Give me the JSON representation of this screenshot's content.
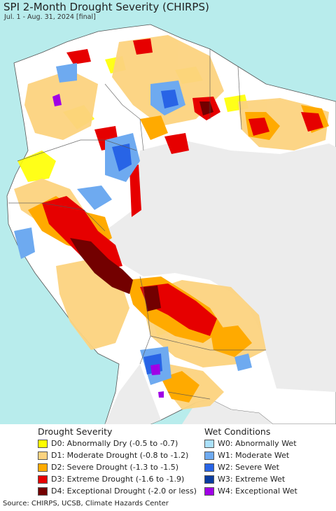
{
  "map": {
    "title": "SPI 2-Month Drought Severity (CHIRPS)",
    "subtitle": "Jul. 1 - Aug. 31, 2024 [final]",
    "colors": {
      "ocean": "#b8ecec",
      "no_drought": "#ffffff",
      "outside_region": "#ececec",
      "borders": "#555555"
    }
  },
  "legend": {
    "drought": {
      "heading": "Drought Severity",
      "items": [
        {
          "label": "D0: Abnormally Dry (-0.5 to -0.7)",
          "color": "#ffff00"
        },
        {
          "label": "D1: Moderate Drought (-0.8 to -1.2)",
          "color": "#fcd37f"
        },
        {
          "label": "D2: Severe Drought (-1.3 to -1.5)",
          "color": "#ffaa00"
        },
        {
          "label": "D3: Extreme Drought (-1.6 to -1.9)",
          "color": "#e60000"
        },
        {
          "label": "D4: Exceptional Drought (-2.0 or less)",
          "color": "#730000"
        }
      ]
    },
    "wet": {
      "heading": "Wet Conditions",
      "items": [
        {
          "label": "W0: Abnormally Wet",
          "color": "#aae0fa"
        },
        {
          "label": "W1: Moderate Wet",
          "color": "#6eaaf0"
        },
        {
          "label": "W2: Severe Wet",
          "color": "#2864e6"
        },
        {
          "label": "W3: Extreme Wet",
          "color": "#0a3ca0"
        },
        {
          "label": "W4: Exceptional Wet",
          "color": "#a000e6"
        }
      ]
    }
  },
  "footer": {
    "source": "Source: CHIRPS, UCSB, Climate Hazards Center"
  }
}
